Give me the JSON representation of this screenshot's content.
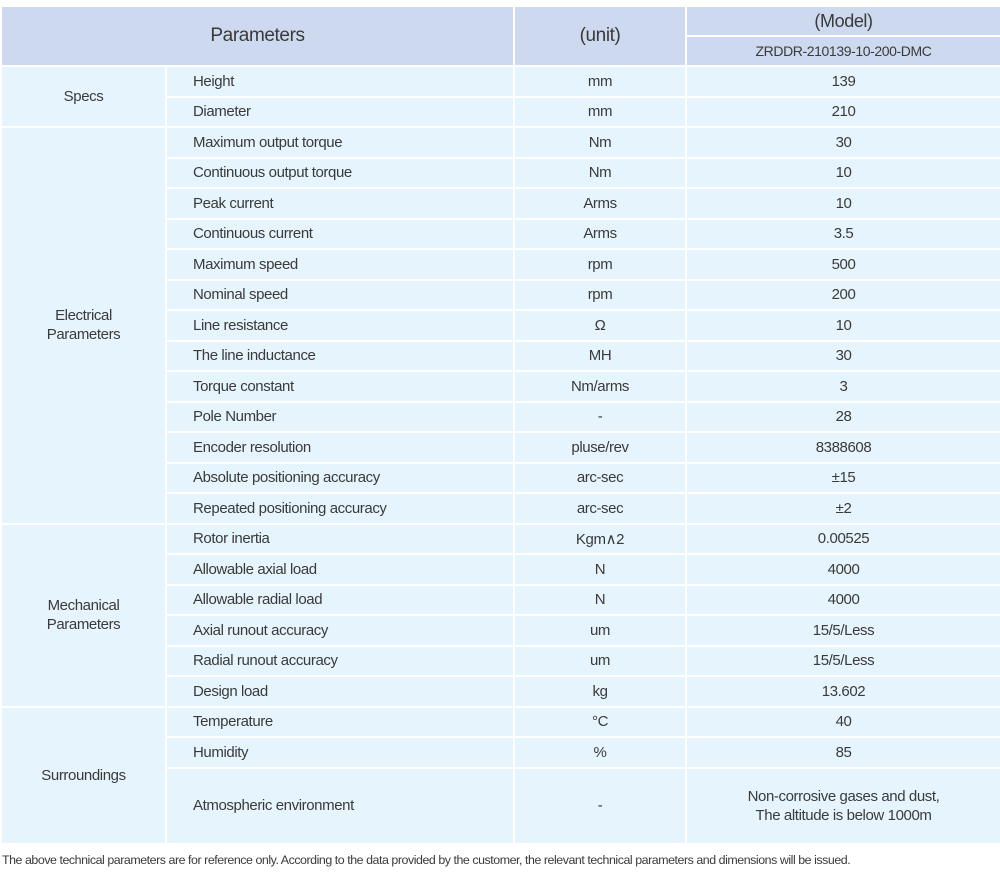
{
  "header": {
    "parameters": "Parameters",
    "unit": "(unit)",
    "model_label": "(Model)",
    "model": "ZRDDR-210139-10-200-DMC"
  },
  "groups": [
    {
      "name": "Specs",
      "rows": [
        {
          "param": "Height",
          "unit": "mm",
          "value": "139"
        },
        {
          "param": "Diameter",
          "unit": "mm",
          "value": "210"
        }
      ]
    },
    {
      "name": "Electrical Parameters",
      "rows": [
        {
          "param": "Maximum output torque",
          "unit": "Nm",
          "value": "30"
        },
        {
          "param": "Continuous output torque",
          "unit": "Nm",
          "value": "10"
        },
        {
          "param": "Peak current",
          "unit": "Arms",
          "value": "10"
        },
        {
          "param": "Continuous current",
          "unit": "Arms",
          "value": "3.5"
        },
        {
          "param": "Maximum speed",
          "unit": "rpm",
          "value": "500"
        },
        {
          "param": "Nominal speed",
          "unit": "rpm",
          "value": "200"
        },
        {
          "param": "Line resistance",
          "unit": "Ω",
          "value": "10"
        },
        {
          "param": "The line inductance",
          "unit": "MH",
          "value": "30"
        },
        {
          "param": "Torque constant",
          "unit": "Nm/arms",
          "value": "3"
        },
        {
          "param": "Pole Number",
          "unit": "-",
          "value": "28"
        },
        {
          "param": "Encoder resolution",
          "unit": "pluse/rev",
          "value": "8388608"
        },
        {
          "param": "Absolute positioning accuracy",
          "unit": "arc-sec",
          "value": "±15"
        },
        {
          "param": "Repeated positioning accuracy",
          "unit": "arc-sec",
          "value": "±2"
        }
      ]
    },
    {
      "name": "Mechanical Parameters",
      "rows": [
        {
          "param": "Rotor inertia",
          "unit": "Kgm∧2",
          "value": "0.00525"
        },
        {
          "param": "Allowable axial load",
          "unit": "N",
          "value": "4000"
        },
        {
          "param": "Allowable radial load",
          "unit": "N",
          "value": "4000"
        },
        {
          "param": "Axial runout accuracy",
          "unit": "um",
          "value": "15/5/Less"
        },
        {
          "param": "Radial runout accuracy",
          "unit": "um",
          "value": "15/5/Less"
        },
        {
          "param": "Design load",
          "unit": "kg",
          "value": "13.602"
        }
      ]
    },
    {
      "name": "Surroundings",
      "rows": [
        {
          "param": "Temperature",
          "unit": "°C",
          "value": "40"
        },
        {
          "param": "Humidity",
          "unit": "%",
          "value": "85"
        },
        {
          "param": "Atmospheric environment",
          "unit": "-",
          "value": "Non-corrosive gases and dust,\nThe altitude is below 1000m"
        }
      ]
    }
  ],
  "note": "The above technical parameters are for reference only. According to the data provided by the customer, the relevant technical parameters and dimensions will be issued."
}
